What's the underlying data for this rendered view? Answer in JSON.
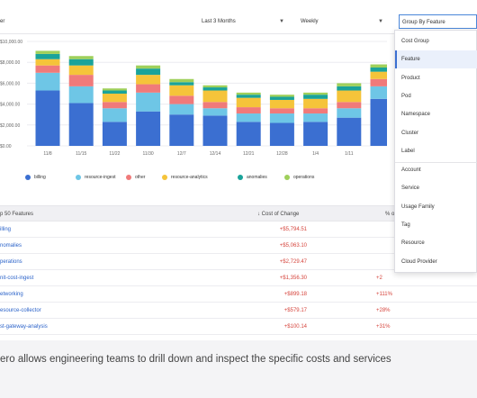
{
  "filters": {
    "left_value": "er",
    "time_range": "Last 3 Months",
    "granularity": "Weekly",
    "group_by": "Group By Feature",
    "caret": "▼"
  },
  "chart_data": {
    "type": "bar",
    "stacked": true,
    "categories": [
      "11/8",
      "11/15",
      "11/22",
      "11/29",
      "12/6",
      "12/13",
      "12/20",
      "12/27",
      "1/3",
      "1/10",
      "1/17"
    ],
    "category_labels": [
      "11/8",
      "11/15",
      "11/22",
      "11/30",
      "12/7",
      "12/14",
      "12/21",
      "12/28",
      "1/4",
      "1/11",
      ""
    ],
    "ylim": [
      0,
      10000
    ],
    "yticks": [
      0,
      2000,
      4000,
      6000,
      8000,
      10000
    ],
    "ytick_labels": [
      "$0.00",
      "$2,000.00",
      "$4,000.00",
      "$6,000.00",
      "$8,000.00",
      "$10,000.00"
    ],
    "series": [
      {
        "name": "billing",
        "color": "#3b6fd1",
        "values": [
          5300,
          4100,
          2300,
          3300,
          3000,
          2900,
          2300,
          2200,
          2300,
          2700,
          4500
        ]
      },
      {
        "name": "resource-ingest",
        "color": "#6ec6e6",
        "values": [
          1700,
          1600,
          1300,
          1800,
          1000,
          700,
          800,
          900,
          800,
          900,
          1200
        ]
      },
      {
        "name": "other",
        "color": "#f07a7a",
        "values": [
          700,
          1100,
          600,
          800,
          800,
          600,
          600,
          500,
          500,
          600,
          700
        ]
      },
      {
        "name": "resource-analytics",
        "color": "#f5c43a",
        "values": [
          600,
          900,
          800,
          900,
          1000,
          1100,
          900,
          800,
          900,
          1100,
          700
        ]
      },
      {
        "name": "anomalies",
        "color": "#1aa39a",
        "values": [
          500,
          600,
          300,
          600,
          300,
          300,
          300,
          300,
          400,
          400,
          400
        ]
      },
      {
        "name": "operations",
        "color": "#9fd05b",
        "values": [
          300,
          300,
          200,
          300,
          300,
          200,
          200,
          200,
          200,
          300,
          300
        ]
      }
    ]
  },
  "table": {
    "col_feature": "p 50 Features",
    "col_cost": "Cost of Change",
    "col_pct": "% of",
    "sort_arrow": "↓",
    "rows": [
      {
        "name": "illing",
        "cost": "+$5,794.51",
        "pct": ""
      },
      {
        "name": "nomalies",
        "cost": "+$5,063.10",
        "pct": ""
      },
      {
        "name": "perations",
        "cost": "+$2,729.47",
        "pct": ""
      },
      {
        "name": "nit-cost-ingest",
        "cost": "+$1,356.30",
        "pct": "+2"
      },
      {
        "name": "etworking",
        "cost": "+$899.18",
        "pct": "+111%"
      },
      {
        "name": "esource-collector",
        "cost": "+$579.17",
        "pct": "+28%"
      },
      {
        "name": "st-gateway-analysis",
        "cost": "+$100.14",
        "pct": "+31%"
      }
    ]
  },
  "dropdown": {
    "items": [
      "Cost Group",
      "Feature",
      "Product",
      "Pod",
      "Namespace",
      "Cluster",
      "Label",
      "Account",
      "Service",
      "Usage Family",
      "Tag",
      "Resource",
      "Cloud Provider"
    ],
    "selected": "Feature"
  },
  "caption": "ero allows engineering teams to drill down and inspect the specific costs and services"
}
